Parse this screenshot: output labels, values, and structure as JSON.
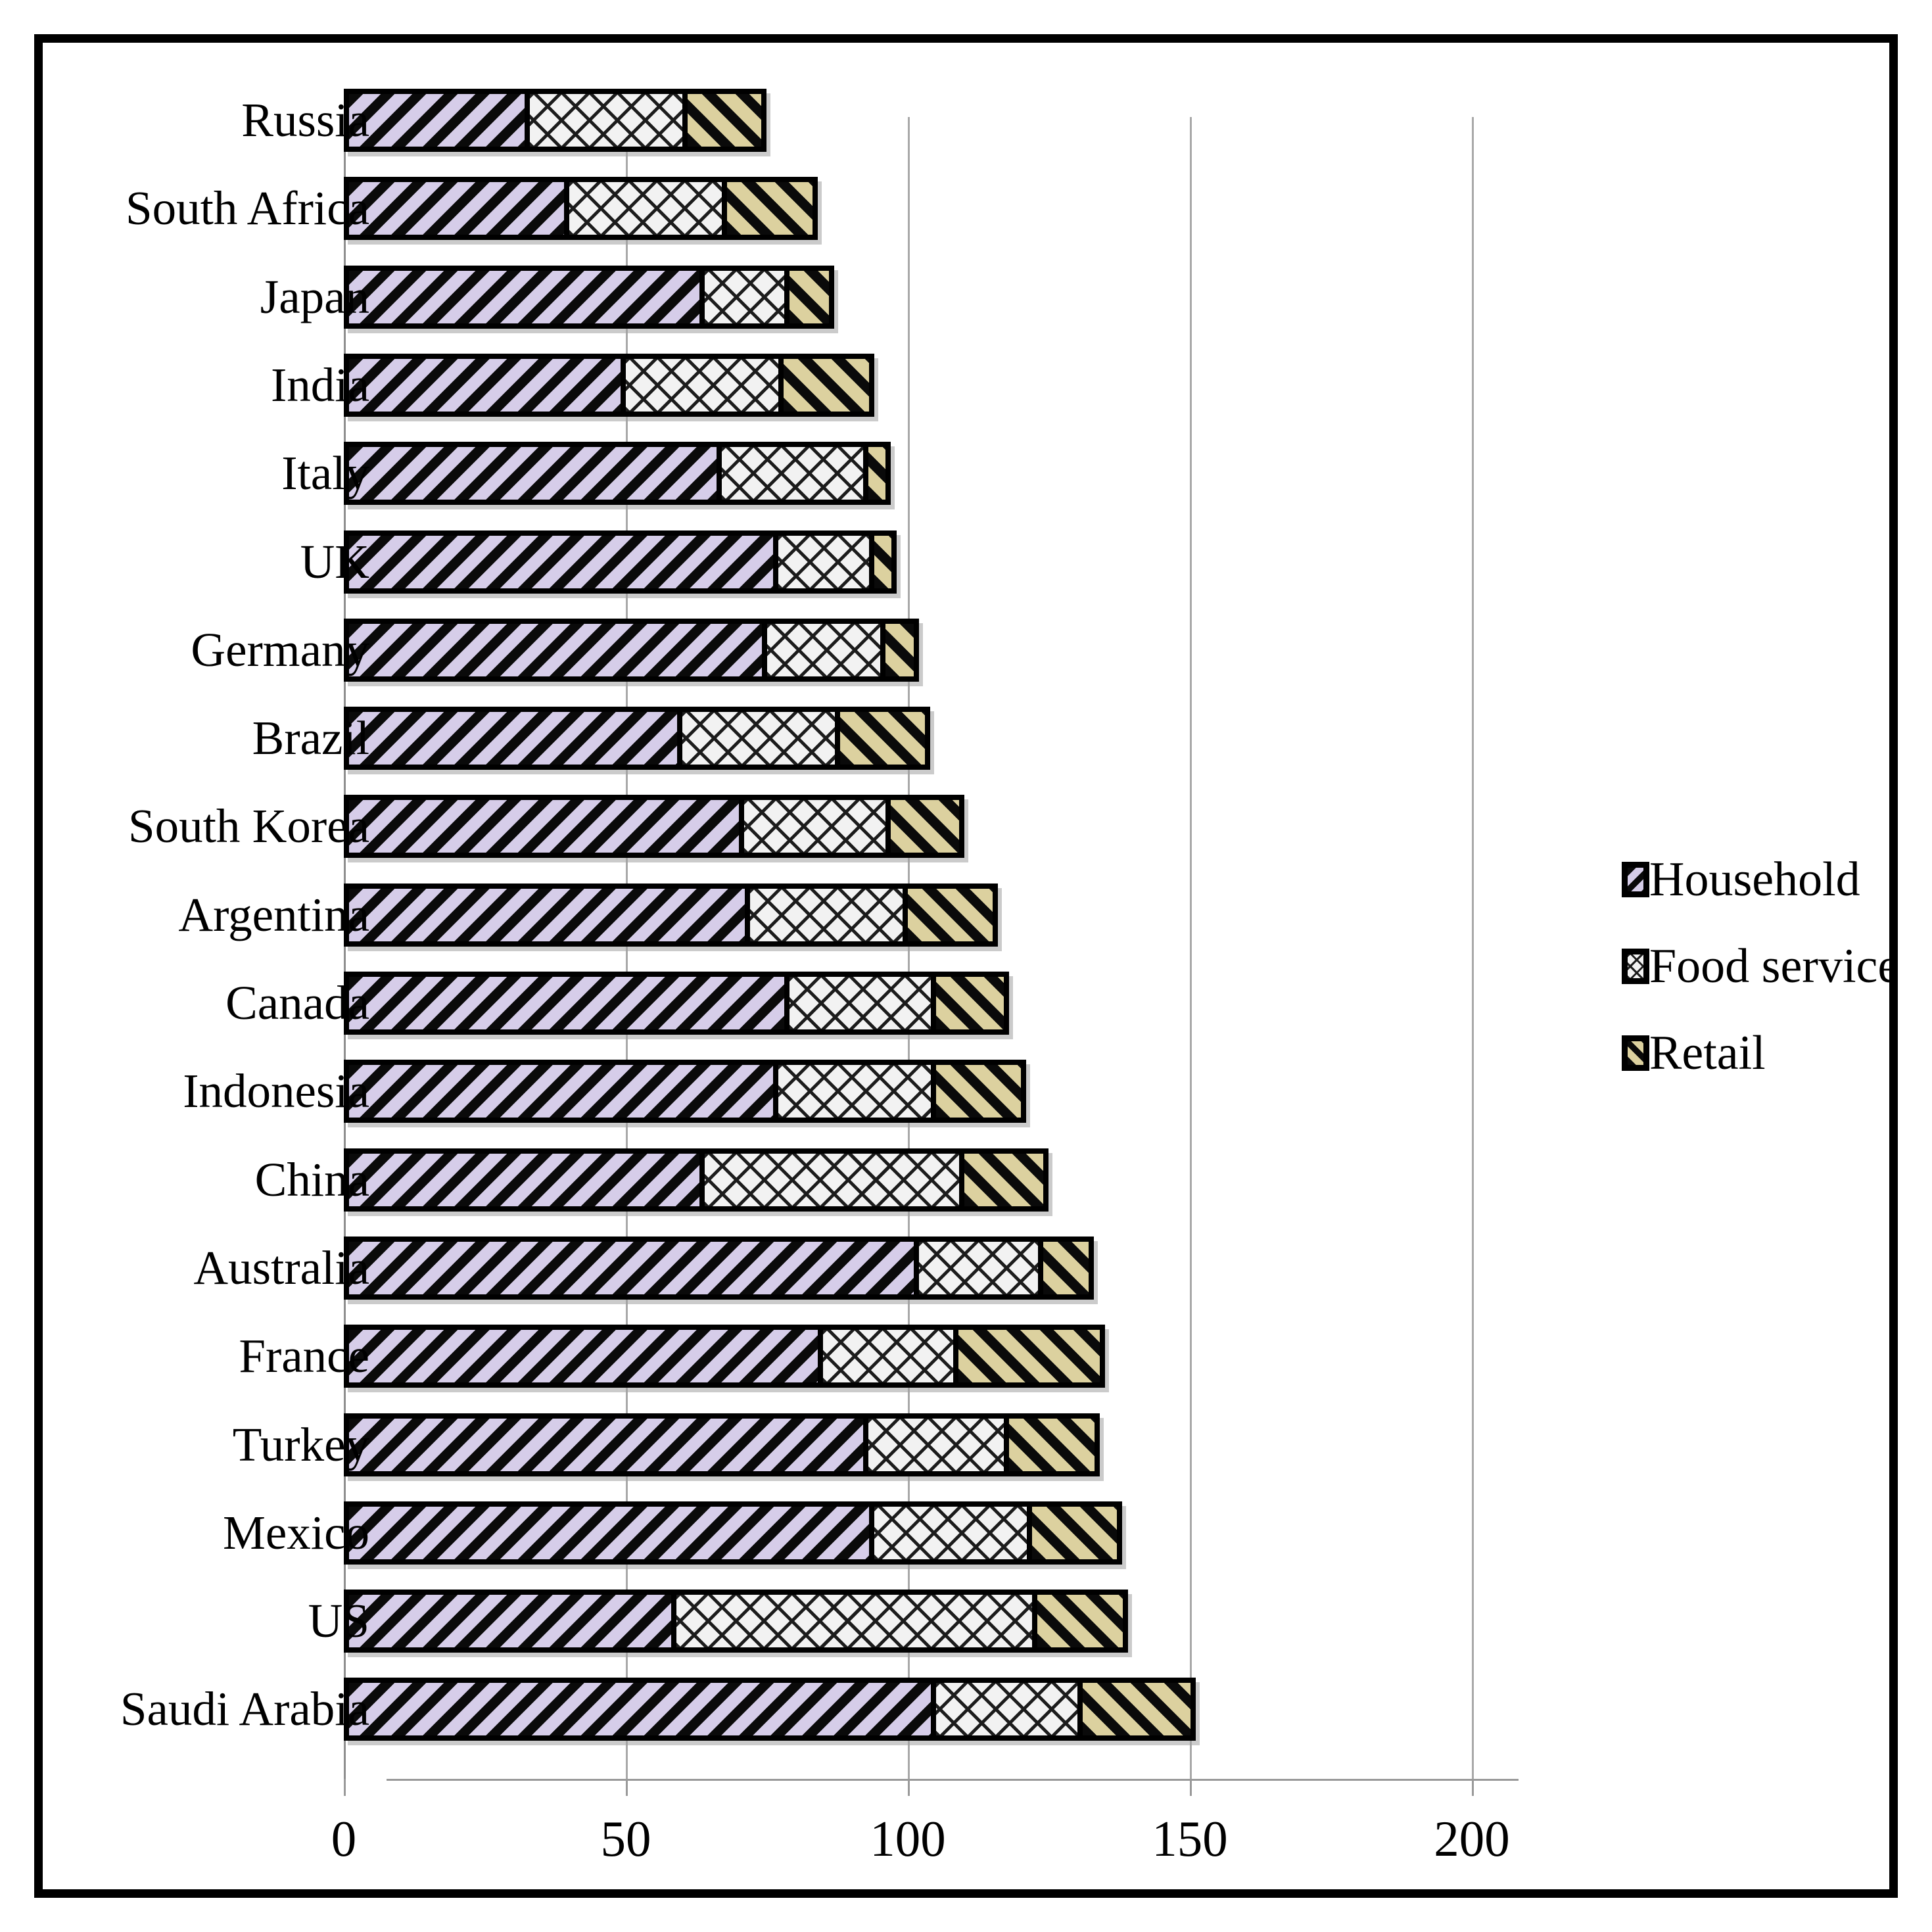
{
  "chart_data": {
    "type": "bar",
    "orientation": "horizontal",
    "stacked": true,
    "title": "",
    "xlabel": "",
    "ylabel": "",
    "xlim": [
      0,
      200
    ],
    "x_ticks": [
      "0",
      "50",
      "100",
      "150",
      "200"
    ],
    "x_tick_values": [
      0,
      50,
      100,
      150,
      200
    ],
    "grid": true,
    "legend_position": "right",
    "categories": [
      "Russia",
      "South Africa",
      "Japan",
      "India",
      "Italy",
      "UK",
      "Germany",
      "Brazil",
      "South Korea",
      "Argentina",
      "Canada",
      "Indonesia",
      "China",
      "Australia",
      "France",
      "Turkey",
      "Mexico",
      "US",
      "Saudi Arabia"
    ],
    "series": [
      {
        "name": "Household",
        "pattern": "diagonal-up-hatch",
        "color": "#d6cde9",
        "values": [
          33,
          40,
          64,
          50,
          67,
          77,
          75,
          60,
          71,
          72,
          79,
          77,
          64,
          102,
          85,
          93,
          94,
          59,
          105
        ]
      },
      {
        "name": "Food service",
        "pattern": "diamond-crosshatch",
        "color": "#f2f2f2",
        "values": [
          28,
          28,
          15,
          28,
          26,
          17,
          21,
          28,
          26,
          28,
          26,
          28,
          46,
          22,
          24,
          25,
          28,
          64,
          26
        ]
      },
      {
        "name": "Retail",
        "pattern": "diagonal-down-hatch",
        "color": "#dcd19f",
        "values": [
          14,
          16,
          8,
          16,
          4,
          4,
          6,
          16,
          13,
          16,
          13,
          16,
          15,
          9,
          26,
          16,
          16,
          16,
          20
        ]
      }
    ],
    "totals": [
      75,
      84,
      87,
      94,
      97,
      98,
      102,
      104,
      110,
      116,
      118,
      121,
      125,
      133,
      135,
      134,
      138,
      139,
      151
    ]
  },
  "legend": {
    "items": [
      {
        "label": "Household"
      },
      {
        "label": "Food service"
      },
      {
        "label": "Retail"
      }
    ]
  },
  "colors": {
    "frame_border": "#000000",
    "gridline": "#a9a9a9",
    "bar_border": "#000000",
    "household_fill": "#d6cde9",
    "food_service_fill": "#f2f2f2",
    "retail_fill": "#dcd19f",
    "text": "#000000"
  }
}
